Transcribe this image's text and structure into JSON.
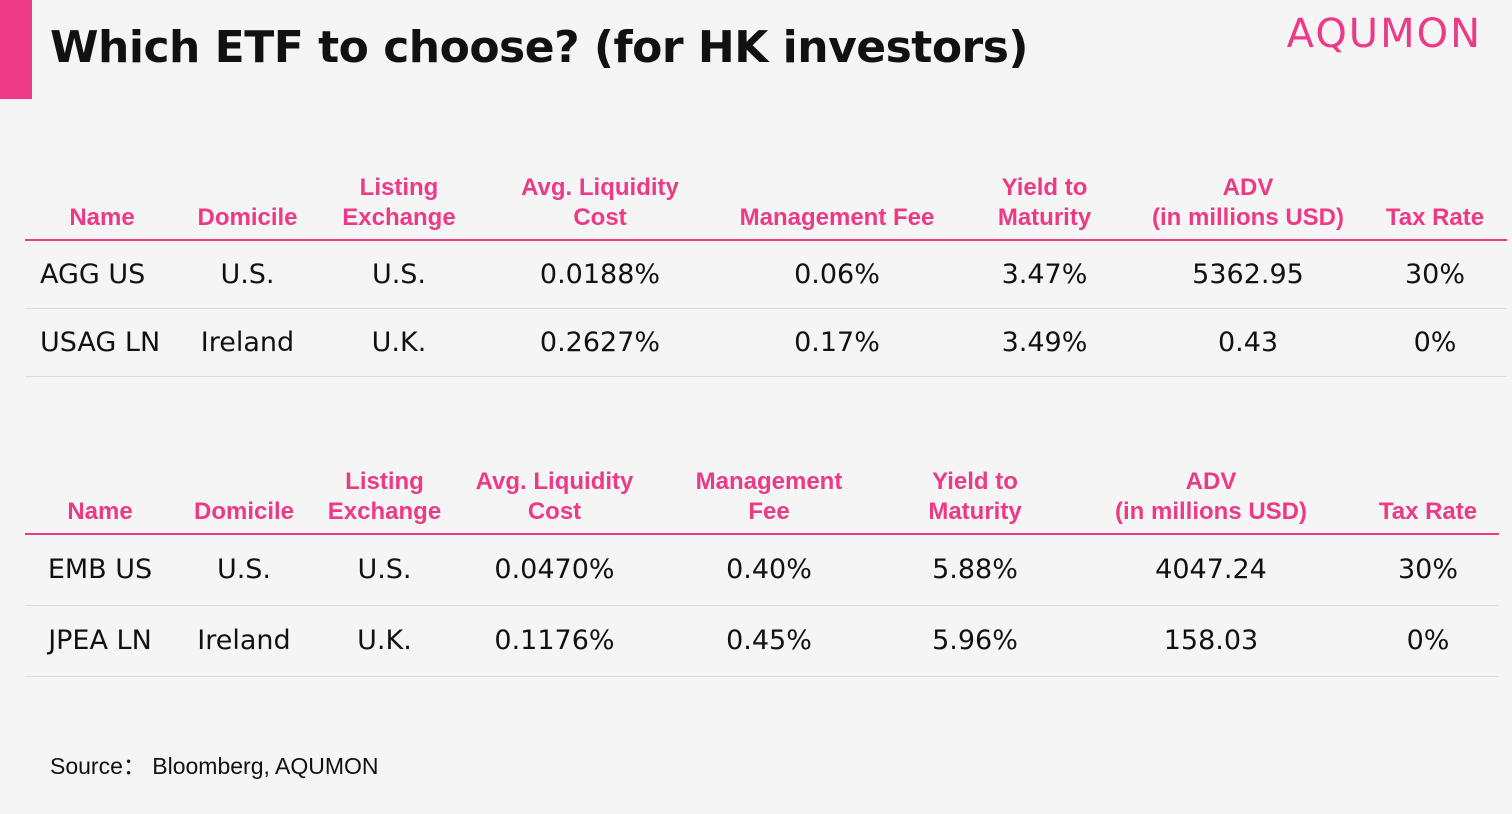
{
  "title": "Which ETF to choose? (for HK investors)",
  "logo": "AQUMON",
  "colors": {
    "accent": "#ec3a86",
    "text": "#111111",
    "background": "#f5f5f5"
  },
  "tables": [
    {
      "headers": {
        "name": "Name",
        "domicile": "Domicile",
        "listing_exchange": "Listing\nExchange",
        "liquidity_cost": "Avg. Liquidity\nCost",
        "management_fee": "Management Fee",
        "yield_to_maturity": "Yield to\nMaturity",
        "adv": "ADV\n(in millions USD)",
        "tax_rate": "Tax Rate"
      },
      "rows": [
        {
          "name": "AGG US",
          "domicile": "U.S.",
          "listing_exchange": "U.S.",
          "liquidity_cost": "0.0188%",
          "management_fee": "0.06%",
          "yield_to_maturity": "3.47%",
          "adv": "5362.95",
          "tax_rate": "30%"
        },
        {
          "name": "USAG LN",
          "domicile": "Ireland",
          "listing_exchange": "U.K.",
          "liquidity_cost": "0.2627%",
          "management_fee": "0.17%",
          "yield_to_maturity": "3.49%",
          "adv": "0.43",
          "tax_rate": "0%"
        }
      ]
    },
    {
      "headers": {
        "name": "Name",
        "domicile": "Domicile",
        "listing_exchange": "Listing\nExchange",
        "liquidity_cost": "Avg. Liquidity\nCost",
        "management_fee": "Management\nFee",
        "yield_to_maturity": "Yield to\nMaturity",
        "adv": "ADV\n(in millions USD)",
        "tax_rate": "Tax Rate"
      },
      "rows": [
        {
          "name": "EMB US",
          "domicile": "U.S.",
          "listing_exchange": "U.S.",
          "liquidity_cost": "0.0470%",
          "management_fee": "0.40%",
          "yield_to_maturity": "5.88%",
          "adv": "4047.24",
          "tax_rate": "30%"
        },
        {
          "name": "JPEA LN",
          "domicile": "Ireland",
          "listing_exchange": "U.K.",
          "liquidity_cost": "0.1176%",
          "management_fee": "0.45%",
          "yield_to_maturity": "5.96%",
          "adv": "158.03",
          "tax_rate": "0%"
        }
      ]
    }
  ],
  "source": "Source： Bloomberg, AQUMON"
}
